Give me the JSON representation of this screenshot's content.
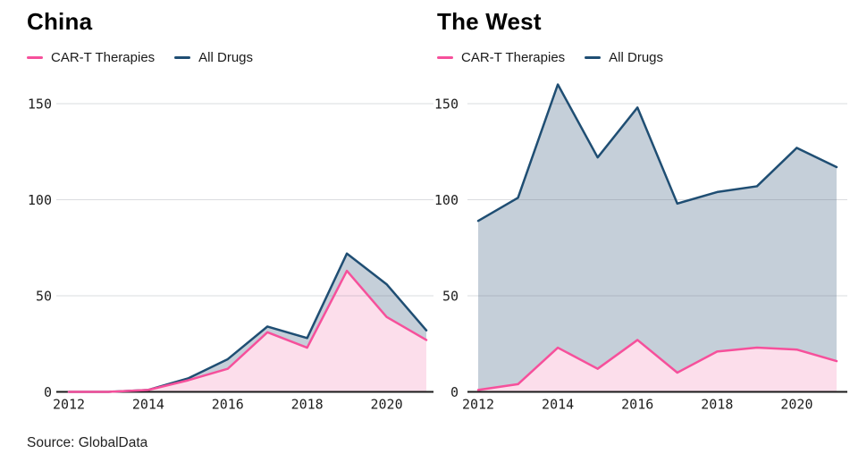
{
  "source_note": "Source: GlobalData",
  "colors": {
    "background": "#ffffff",
    "cart_line": "#f6509b",
    "cart_fill": "#fcdeeb",
    "alldrugs_line": "#1f4e73",
    "alldrugs_fill": "#c5cfd9",
    "gridline": "#e2e2e2",
    "axis": "#1a1a1a",
    "tick_text": "#1d1d1d"
  },
  "chart_data": [
    {
      "type": "area",
      "title": "China",
      "x": [
        2012,
        2013,
        2014,
        2015,
        2016,
        2017,
        2018,
        2019,
        2020,
        2021
      ],
      "x_ticks": [
        2012,
        2014,
        2016,
        2018,
        2020
      ],
      "y_ticks": [
        0,
        50,
        100,
        150
      ],
      "ylim": [
        0,
        165
      ],
      "grid": true,
      "legend_position": "top-left",
      "series": [
        {
          "name": "CAR-T Therapies",
          "line_color": "#f6509b",
          "fill_color": "#fcdeeb",
          "values": [
            0,
            0,
            1,
            6,
            12,
            31,
            23,
            63,
            39,
            27
          ]
        },
        {
          "name": "All Drugs",
          "line_color": "#1f4e73",
          "fill_color": "#c5cfd9",
          "values": [
            0,
            0,
            1,
            7,
            17,
            34,
            28,
            72,
            56,
            32
          ]
        }
      ]
    },
    {
      "type": "area",
      "title": "The West",
      "x": [
        2012,
        2013,
        2014,
        2015,
        2016,
        2017,
        2018,
        2019,
        2020,
        2021
      ],
      "x_ticks": [
        2012,
        2014,
        2016,
        2018,
        2020
      ],
      "y_ticks": [
        0,
        50,
        100,
        150
      ],
      "ylim": [
        0,
        165
      ],
      "grid": true,
      "legend_position": "top-left",
      "series": [
        {
          "name": "CAR-T Therapies",
          "line_color": "#f6509b",
          "fill_color": "#fcdeeb",
          "values": [
            1,
            4,
            23,
            12,
            27,
            10,
            21,
            23,
            22,
            16
          ]
        },
        {
          "name": "All Drugs",
          "line_color": "#1f4e73",
          "fill_color": "#c5cfd9",
          "values": [
            89,
            101,
            160,
            122,
            148,
            98,
            104,
            107,
            127,
            117
          ]
        }
      ]
    }
  ]
}
